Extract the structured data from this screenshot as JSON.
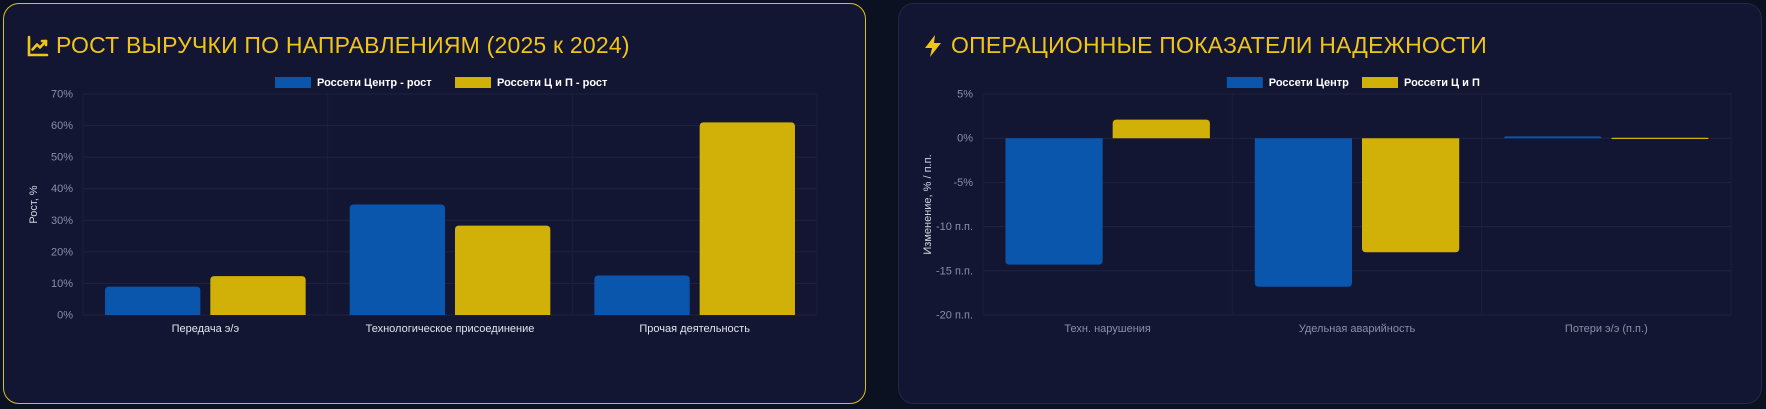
{
  "colors": {
    "blue": "#0a56ad",
    "gold": "#d1b108",
    "title": "#f0c419"
  },
  "panels": {
    "left": {
      "title": "РОСТ ВЫРУЧКИ ПО НАПРАВЛЕНИЯМ (2025 к 2024)",
      "icon": "line-chart-icon"
    },
    "right": {
      "title": "ОПЕРАЦИОННЫЕ ПОКАЗАТЕЛИ НАДЕЖНОСТИ",
      "icon": "lightning-icon"
    }
  },
  "chart_data": [
    {
      "type": "bar",
      "title": "РОСТ ВЫРУЧКИ ПО НАПРАВЛЕНИЯМ (2025 к 2024)",
      "categories": [
        "Передача э/э",
        "Технологическое присоединение",
        "Прочая деятельность"
      ],
      "series": [
        {
          "name": "Россети Центр - рост",
          "values": [
            9,
            35,
            12.5
          ],
          "color": "#0a56ad"
        },
        {
          "name": "Россети Ц и П - рост",
          "values": [
            12.3,
            28.3,
            61
          ],
          "color": "#d1b108"
        }
      ],
      "ylabel": "Рост, %",
      "xlabel": "",
      "ylim": [
        0,
        70
      ],
      "yticks": [
        0,
        10,
        20,
        30,
        40,
        50,
        60,
        70
      ],
      "ytick_labels": [
        "0%",
        "10%",
        "20%",
        "30%",
        "40%",
        "50%",
        "60%",
        "70%"
      ],
      "legend": "top-center",
      "grid": true
    },
    {
      "type": "bar",
      "title": "ОПЕРАЦИОННЫЕ ПОКАЗАТЕЛИ НАДЕЖНОСТИ",
      "categories": [
        "Техн. нарушения",
        "Удельная аварийность",
        "Потери э/э (п.п.)"
      ],
      "series": [
        {
          "name": "Россети Центр",
          "values": [
            -14.3,
            -16.8,
            0.2
          ],
          "color": "#0a56ad"
        },
        {
          "name": "Россети Ц и П",
          "values": [
            2.1,
            -12.9,
            0.05
          ],
          "color": "#d1b108"
        }
      ],
      "ylabel": "Изменение, % / п.п.",
      "xlabel": "",
      "ylim": [
        -20,
        5
      ],
      "yticks": [
        5,
        0,
        -5,
        -10,
        -15,
        -20
      ],
      "ytick_labels": [
        "5%",
        "0%",
        "-5%",
        "-10 п.п.",
        "-15 п.п.",
        "-20 п.п."
      ],
      "legend": "top-center",
      "grid": true
    }
  ]
}
